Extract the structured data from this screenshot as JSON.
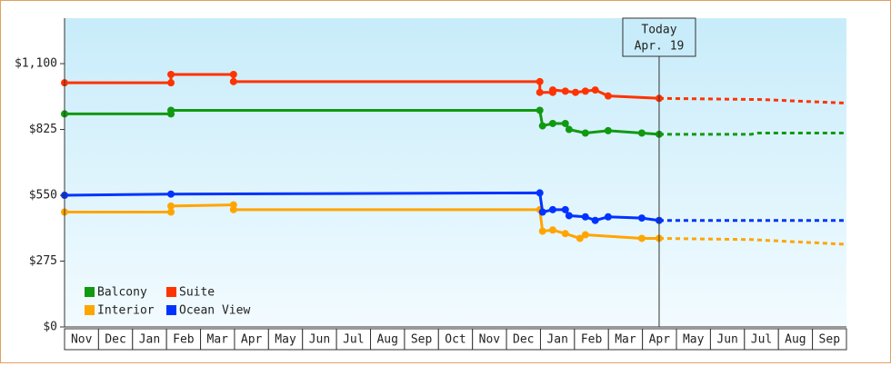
{
  "chart_data": {
    "type": "line",
    "step_markers": true,
    "xlim": [
      0,
      23
    ],
    "ylim": [
      0,
      1290
    ],
    "xticks": [
      {
        "value": 0.5,
        "label": "Nov"
      },
      {
        "value": 1.5,
        "label": "Dec"
      },
      {
        "value": 2.5,
        "label": "Jan"
      },
      {
        "value": 3.5,
        "label": "Feb"
      },
      {
        "value": 4.5,
        "label": "Mar"
      },
      {
        "value": 5.5,
        "label": "Apr"
      },
      {
        "value": 6.5,
        "label": "May"
      },
      {
        "value": 7.5,
        "label": "Jun"
      },
      {
        "value": 8.5,
        "label": "Jul"
      },
      {
        "value": 9.5,
        "label": "Aug"
      },
      {
        "value": 10.5,
        "label": "Sep"
      },
      {
        "value": 11.5,
        "label": "Oct"
      },
      {
        "value": 12.5,
        "label": "Nov"
      },
      {
        "value": 13.5,
        "label": "Dec"
      },
      {
        "value": 14.5,
        "label": "Jan"
      },
      {
        "value": 15.5,
        "label": "Feb"
      },
      {
        "value": 16.5,
        "label": "Mar"
      },
      {
        "value": 17.5,
        "label": "Apr"
      },
      {
        "value": 18.5,
        "label": "May"
      },
      {
        "value": 19.5,
        "label": "Jun"
      },
      {
        "value": 20.5,
        "label": "Jul"
      },
      {
        "value": 21.5,
        "label": "Aug"
      },
      {
        "value": 22.5,
        "label": "Sep"
      }
    ],
    "yticks": [
      {
        "value": 0,
        "label": "$0"
      },
      {
        "value": 275,
        "label": "$275"
      },
      {
        "value": 550,
        "label": "$550"
      },
      {
        "value": 825,
        "label": "$825"
      },
      {
        "value": 1100,
        "label": "$1,100"
      }
    ],
    "annotation": {
      "x": 17.49,
      "lines": [
        "Today",
        "Apr. 19"
      ]
    },
    "series": [
      {
        "name": "Balcony",
        "color": "#119911",
        "x": [
          0,
          3.13,
          3.13,
          13.98,
          14.06,
          14.36,
          14.73,
          14.84,
          15.32,
          15.99,
          16.98,
          17.49
        ],
        "values": [
          890,
          890,
          905,
          905,
          840,
          850,
          850,
          825,
          810,
          820,
          810,
          805
        ],
        "forecast_x": [
          17.49,
          20.2,
          20.4,
          23
        ],
        "forecast_values": [
          805,
          805,
          810,
          810
        ]
      },
      {
        "name": "Suite",
        "color": "#ff3300",
        "x": [
          0,
          3.13,
          3.13,
          4.97,
          4.97,
          13.98,
          13.98,
          14.36,
          14.36,
          14.73,
          15.03,
          15.32,
          15.61,
          15.99,
          17.49
        ],
        "values": [
          1020,
          1020,
          1055,
          1055,
          1025,
          1025,
          980,
          980,
          990,
          985,
          980,
          985,
          990,
          965,
          955
        ],
        "forecast_x": [
          17.49,
          20.5,
          23
        ],
        "forecast_values": [
          955,
          950,
          935
        ]
      },
      {
        "name": "Interior",
        "color": "#ffa500",
        "x": [
          0,
          3.13,
          3.13,
          4.97,
          4.97,
          13.98,
          14.06,
          14.36,
          14.73,
          15.16,
          15.32,
          16.98,
          17.49
        ],
        "values": [
          480,
          480,
          505,
          510,
          490,
          490,
          400,
          405,
          390,
          370,
          385,
          370,
          370
        ],
        "forecast_x": [
          17.49,
          20.2,
          23
        ],
        "forecast_values": [
          370,
          365,
          345
        ]
      },
      {
        "name": "Ocean View",
        "color": "#0033ff",
        "x": [
          0,
          3.13,
          13.98,
          14.06,
          14.36,
          14.73,
          14.84,
          15.32,
          15.61,
          15.99,
          16.98,
          17.49
        ],
        "values": [
          550,
          555,
          560,
          480,
          490,
          490,
          465,
          460,
          445,
          460,
          455,
          445
        ],
        "forecast_x": [
          17.49,
          23
        ],
        "forecast_values": [
          445,
          445
        ]
      }
    ]
  }
}
